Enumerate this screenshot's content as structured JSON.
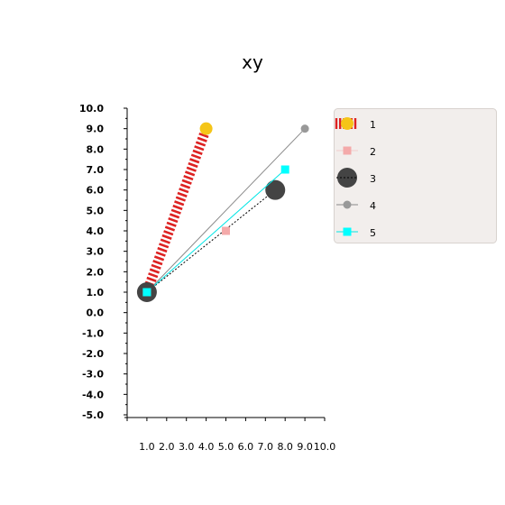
{
  "chart_data": {
    "type": "line",
    "title": "xy",
    "xlabel": "",
    "ylabel": "",
    "xlim": [
      0.0,
      10.0
    ],
    "ylim": [
      -5.0,
      10.0
    ],
    "x_ticks": [
      "1.0",
      "2.0",
      "3.0",
      "4.0",
      "5.0",
      "6.0",
      "7.0",
      "8.0",
      "9.0",
      "10.0"
    ],
    "y_ticks": [
      "10.0",
      "9.0",
      "8.0",
      "7.0",
      "6.0",
      "5.0",
      "4.0",
      "3.0",
      "2.0",
      "1.0",
      "0.0",
      "-1.0",
      "-2.0",
      "-3.0",
      "-4.0",
      "-5.0"
    ],
    "grid": false,
    "legend_position": "right",
    "series": [
      {
        "name": "1",
        "points": [
          [
            1,
            1
          ],
          [
            4,
            9
          ]
        ],
        "line_color": "#dd2222",
        "line_style": "hatched-thick",
        "marker": "circle-large",
        "marker_color": "#f5c518"
      },
      {
        "name": "2",
        "points": [
          [
            1,
            1
          ],
          [
            5,
            4
          ]
        ],
        "line_color": "#f4aaaa",
        "line_style": "none",
        "marker": "square",
        "marker_color": "#f4aaaa"
      },
      {
        "name": "3",
        "points": [
          [
            1,
            1
          ],
          [
            7.5,
            6
          ]
        ],
        "line_color": "#000000",
        "line_style": "dotted",
        "marker": "circle-xlarge",
        "marker_color": "#444444"
      },
      {
        "name": "4",
        "points": [
          [
            1,
            1
          ],
          [
            9,
            9
          ]
        ],
        "line_color": "#888888",
        "line_style": "solid",
        "marker": "circle-small",
        "marker_color": "#999999"
      },
      {
        "name": "5",
        "points": [
          [
            1,
            1
          ],
          [
            8,
            7
          ]
        ],
        "line_color": "#00e5e5",
        "line_style": "solid",
        "marker": "square",
        "marker_color": "#00ffff"
      }
    ]
  }
}
